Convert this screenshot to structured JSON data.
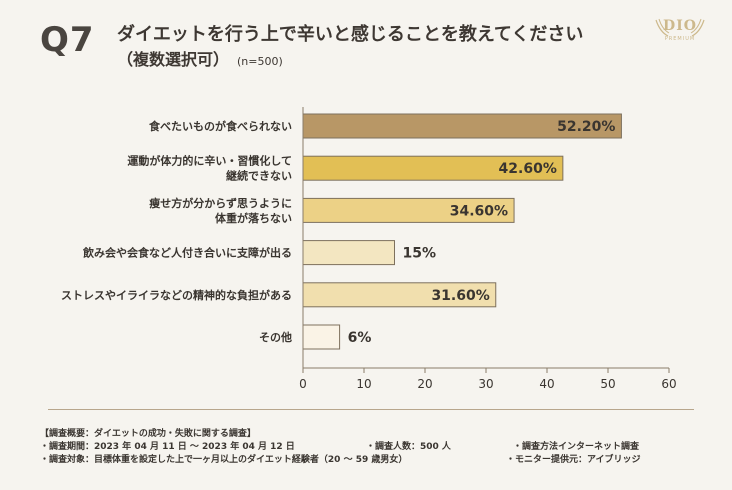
{
  "header": {
    "q_label": "Q7",
    "title_line1": "ダイエットを行う上で辛いと感じることを教えてください",
    "title_line2": "（複数選択可）",
    "sample_size": "(n=500)"
  },
  "logo": {
    "text": "DIO",
    "subtext": "PREMIUM"
  },
  "chart_data": {
    "type": "bar",
    "orientation": "horizontal",
    "title": "ダイエットを行う上で辛いと感じることを教えてください（複数選択可）",
    "xlabel": "",
    "ylabel": "",
    "xlim": [
      0,
      60
    ],
    "xticks": [
      0,
      10,
      20,
      30,
      40,
      50,
      60
    ],
    "categories": [
      [
        "食べたいものが食べられない"
      ],
      [
        "運動が体力的に辛い・習慣化して",
        "継続できない"
      ],
      [
        "痩せ方が分からず思うように",
        "体重が落ちない"
      ],
      [
        "飲み会や会食など人付き合いに支障が出る"
      ],
      [
        "ストレスやイライラなどの精神的な負担がある"
      ],
      [
        "その他"
      ]
    ],
    "values": [
      52.2,
      42.6,
      34.6,
      15,
      31.6,
      6
    ],
    "value_labels": [
      "52.20%",
      "42.60%",
      "34.60%",
      "15%",
      "31.60%",
      "6%"
    ],
    "colors": [
      "#b89766",
      "#e2bf55",
      "#ecd186",
      "#f3e6c1",
      "#f1dfae",
      "#faf3e6"
    ],
    "grid": false
  },
  "survey": {
    "overview": "【調査概要：ダイエットの成功・失敗に関する調査】",
    "period": "・調査期間：2023 年 04 月 11 日 ～ 2023 年 04 月 12 日",
    "respondents": "・調査人数：500 人",
    "method": "・調査方法インターネット調査",
    "target": "・調査対象：目標体重を設定した上で一ヶ月以上のダイエット経験者（20 ～ 59 歳男女）",
    "provider": "・モニター提供元：アイブリッジ"
  }
}
